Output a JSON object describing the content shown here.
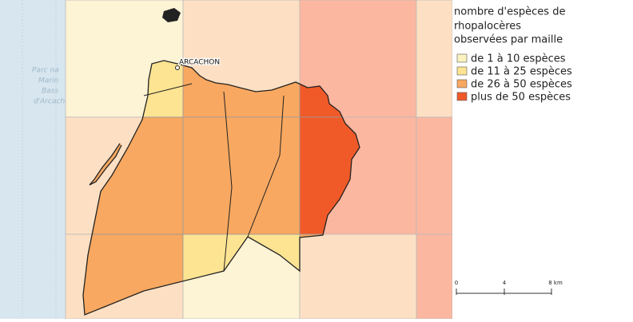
{
  "map": {
    "background_labels": [
      "Parc na",
      "Marin",
      "Bass",
      "d'Arcach"
    ],
    "place_label": "ARCACHON",
    "legend": {
      "title": [
        "nombre d'espèces de",
        "rhopalocères",
        "observées par maille"
      ],
      "items": [
        "de 1 à 10 espèces",
        "de 11 à 25 espèces",
        "de 26 à 50 espèces",
        "plus de 50 espèces"
      ]
    },
    "scale_bar": {
      "labels": [
        "0",
        "4",
        "8 km"
      ]
    }
  }
}
